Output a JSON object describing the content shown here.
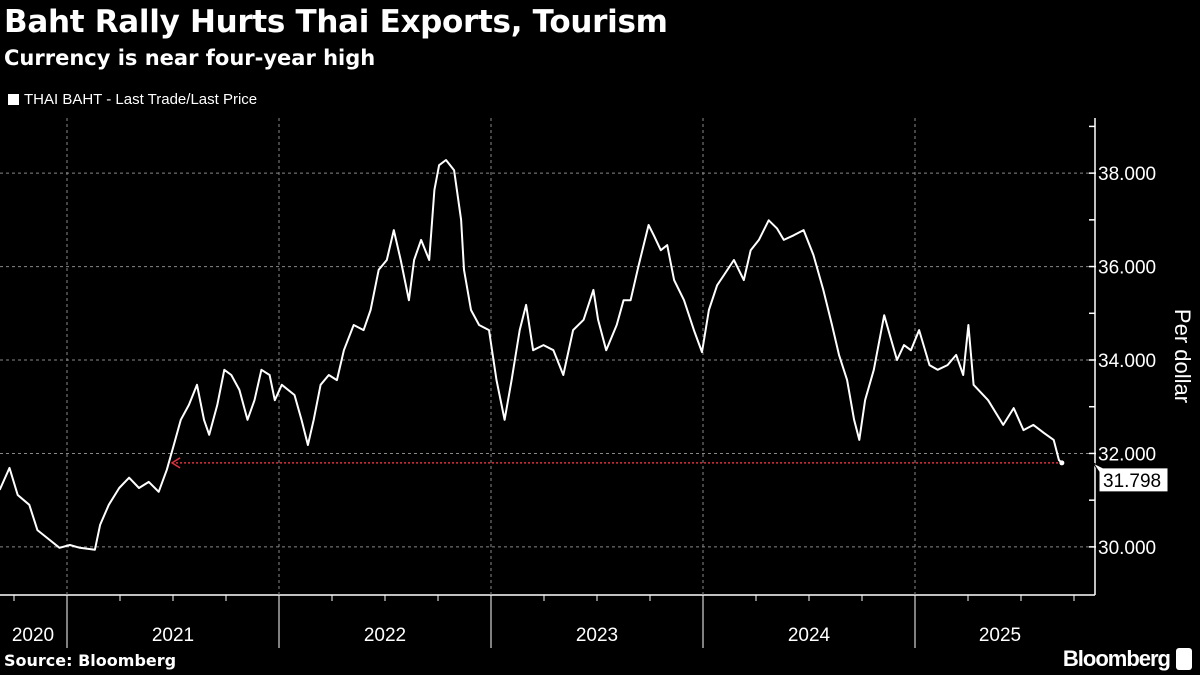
{
  "title": "Baht Rally Hurts Thai Exports, Tourism",
  "subtitle": "Currency is near four-year high",
  "source": "Source: Bloomberg",
  "brand": "Bloomberg",
  "colors": {
    "background": "#000000",
    "line": "#ffffff",
    "reference_line": "#e0323c",
    "grid": "#888888"
  },
  "chart_data": {
    "type": "line",
    "legend": "top-left",
    "series": [
      {
        "name": "THAI BAHT - Last Trade/Last Price",
        "points": [
          [
            "2020-09-07",
            31.22
          ],
          [
            "2020-09-24",
            31.69
          ],
          [
            "2020-10-08",
            31.11
          ],
          [
            "2020-10-28",
            30.9
          ],
          [
            "2020-11-11",
            30.36
          ],
          [
            "2020-12-02",
            30.15
          ],
          [
            "2020-12-19",
            29.98
          ],
          [
            "2021-01-06",
            30.04
          ],
          [
            "2021-01-23",
            29.98
          ],
          [
            "2021-02-18",
            29.94
          ],
          [
            "2021-02-27",
            30.47
          ],
          [
            "2021-03-14",
            30.9
          ],
          [
            "2021-04-01",
            31.26
          ],
          [
            "2021-04-18",
            31.48
          ],
          [
            "2021-05-05",
            31.26
          ],
          [
            "2021-05-22",
            31.39
          ],
          [
            "2021-06-08",
            31.18
          ],
          [
            "2021-06-22",
            31.65
          ],
          [
            "2021-07-04",
            32.18
          ],
          [
            "2021-07-16",
            32.72
          ],
          [
            "2021-07-30",
            33.04
          ],
          [
            "2021-08-13",
            33.47
          ],
          [
            "2021-08-25",
            32.72
          ],
          [
            "2021-09-03",
            32.4
          ],
          [
            "2021-09-17",
            33.04
          ],
          [
            "2021-09-29",
            33.79
          ],
          [
            "2021-10-11",
            33.68
          ],
          [
            "2021-10-25",
            33.36
          ],
          [
            "2021-11-08",
            32.72
          ],
          [
            "2021-11-20",
            33.14
          ],
          [
            "2021-12-02",
            33.79
          ],
          [
            "2021-12-16",
            33.68
          ],
          [
            "2021-12-25",
            33.14
          ],
          [
            "2022-01-06",
            33.47
          ],
          [
            "2022-01-28",
            33.25
          ],
          [
            "2022-02-09",
            32.72
          ],
          [
            "2022-02-20",
            32.18
          ],
          [
            "2022-03-02",
            32.72
          ],
          [
            "2022-03-14",
            33.47
          ],
          [
            "2022-03-28",
            33.68
          ],
          [
            "2022-04-11",
            33.57
          ],
          [
            "2022-04-23",
            34.21
          ],
          [
            "2022-05-10",
            34.75
          ],
          [
            "2022-05-27",
            34.64
          ],
          [
            "2022-06-08",
            35.07
          ],
          [
            "2022-06-22",
            35.93
          ],
          [
            "2022-07-06",
            36.14
          ],
          [
            "2022-07-18",
            36.78
          ],
          [
            "2022-07-30",
            36.14
          ],
          [
            "2022-08-13",
            35.28
          ],
          [
            "2022-08-22",
            36.14
          ],
          [
            "2022-09-03",
            36.57
          ],
          [
            "2022-09-17",
            36.14
          ],
          [
            "2022-09-26",
            37.64
          ],
          [
            "2022-10-04",
            38.17
          ],
          [
            "2022-10-16",
            38.28
          ],
          [
            "2022-10-30",
            38.06
          ],
          [
            "2022-11-11",
            37.0
          ],
          [
            "2022-11-16",
            35.93
          ],
          [
            "2022-11-28",
            35.07
          ],
          [
            "2022-12-12",
            34.75
          ],
          [
            "2022-12-29",
            34.64
          ],
          [
            "2023-01-11",
            33.57
          ],
          [
            "2023-01-25",
            32.72
          ],
          [
            "2023-02-06",
            33.57
          ],
          [
            "2023-02-20",
            34.64
          ],
          [
            "2023-03-03",
            35.18
          ],
          [
            "2023-03-15",
            34.21
          ],
          [
            "2023-04-02",
            34.32
          ],
          [
            "2023-04-19",
            34.21
          ],
          [
            "2023-05-06",
            33.68
          ],
          [
            "2023-05-23",
            34.64
          ],
          [
            "2023-06-10",
            34.86
          ],
          [
            "2023-06-27",
            35.5
          ],
          [
            "2023-07-05",
            34.86
          ],
          [
            "2023-07-19",
            34.21
          ],
          [
            "2023-08-06",
            34.75
          ],
          [
            "2023-08-18",
            35.28
          ],
          [
            "2023-08-30",
            35.28
          ],
          [
            "2023-09-13",
            36.03
          ],
          [
            "2023-09-30",
            36.89
          ],
          [
            "2023-10-09",
            36.67
          ],
          [
            "2023-10-21",
            36.35
          ],
          [
            "2023-11-01",
            36.46
          ],
          [
            "2023-11-13",
            35.71
          ],
          [
            "2023-11-30",
            35.28
          ],
          [
            "2023-12-17",
            34.64
          ],
          [
            "2023-12-31",
            34.17
          ],
          [
            "2024-01-12",
            35.07
          ],
          [
            "2024-01-26",
            35.6
          ],
          [
            "2024-02-07",
            35.82
          ],
          [
            "2024-02-24",
            36.14
          ],
          [
            "2024-03-12",
            35.71
          ],
          [
            "2024-03-24",
            36.35
          ],
          [
            "2024-04-07",
            36.57
          ],
          [
            "2024-04-24",
            36.99
          ],
          [
            "2024-05-08",
            36.82
          ],
          [
            "2024-05-20",
            36.57
          ],
          [
            "2024-06-06",
            36.67
          ],
          [
            "2024-06-23",
            36.78
          ],
          [
            "2024-07-10",
            36.25
          ],
          [
            "2024-07-27",
            35.5
          ],
          [
            "2024-08-11",
            34.75
          ],
          [
            "2024-08-23",
            34.11
          ],
          [
            "2024-09-06",
            33.57
          ],
          [
            "2024-09-18",
            32.72
          ],
          [
            "2024-09-27",
            32.29
          ],
          [
            "2024-10-07",
            33.14
          ],
          [
            "2024-10-22",
            33.79
          ],
          [
            "2024-11-09",
            34.96
          ],
          [
            "2024-11-21",
            34.43
          ],
          [
            "2024-12-01",
            34.0
          ],
          [
            "2024-12-13",
            34.32
          ],
          [
            "2024-12-25",
            34.21
          ],
          [
            "2025-01-08",
            34.64
          ],
          [
            "2025-01-26",
            33.89
          ],
          [
            "2025-02-09",
            33.79
          ],
          [
            "2025-02-26",
            33.89
          ],
          [
            "2025-03-13",
            34.11
          ],
          [
            "2025-03-25",
            33.68
          ],
          [
            "2025-04-03",
            34.75
          ],
          [
            "2025-04-12",
            33.47
          ],
          [
            "2025-05-07",
            33.14
          ],
          [
            "2025-06-02",
            32.61
          ],
          [
            "2025-06-20",
            32.97
          ],
          [
            "2025-07-07",
            32.5
          ],
          [
            "2025-07-24",
            32.61
          ],
          [
            "2025-08-11",
            32.44
          ],
          [
            "2025-08-28",
            32.29
          ],
          [
            "2025-09-06",
            31.86
          ],
          [
            "2025-09-11",
            31.798
          ]
        ]
      }
    ],
    "last_value_label": "31.798",
    "reference_line": {
      "value": 31.798,
      "from": "2021-07-01",
      "to": "2025-09-11"
    },
    "ylabel": "Per dollar",
    "yticks": [
      30,
      32,
      34,
      36,
      38
    ],
    "ytick_labels": [
      "30.000",
      "32.000",
      "34.000",
      "36.000",
      "38.000"
    ],
    "ylim": [
      28.97,
      39.18
    ],
    "xlim": [
      "2020-09-07",
      "2025-10-26"
    ],
    "xtick_labels": [
      "2020",
      "2021",
      "2022",
      "2023",
      "2024",
      "2025"
    ],
    "grid": true
  }
}
